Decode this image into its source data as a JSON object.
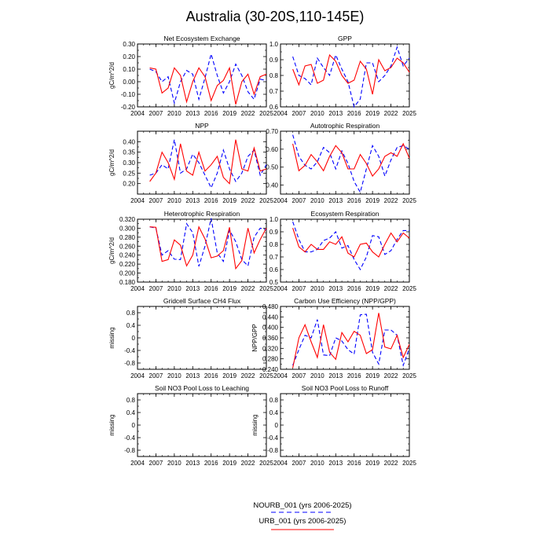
{
  "title": "Australia (30-20S,110-145E)",
  "colors": {
    "nourb": "#0000ff",
    "urb": "#ff0000"
  },
  "legend": [
    {
      "label": "NOURB_001 (yrs 2006-2025)",
      "color": "#0000ff",
      "style": "dashed"
    },
    {
      "label": "URB_001 (yrs 2006-2025)",
      "color": "#ff0000",
      "style": "solid"
    }
  ],
  "chart_data": [
    {
      "type": "line",
      "title": "Net Ecosystem Exchange",
      "ylabel": "gC/m^2/d",
      "xlim": [
        2004,
        2025
      ],
      "ylim": [
        -0.2,
        0.3
      ],
      "xticks": [
        2004,
        2007,
        2010,
        2013,
        2016,
        2019,
        2022,
        2025
      ],
      "yticks": [
        -0.2,
        -0.1,
        0.0,
        0.1,
        0.2,
        0.3
      ],
      "yticklabels": [
        "-0.20",
        "-0.10",
        "0.00",
        "0.10",
        "0.20",
        "0.30"
      ],
      "x": [
        2006,
        2007,
        2008,
        2009,
        2010,
        2011,
        2012,
        2013,
        2014,
        2015,
        2016,
        2017,
        2018,
        2019,
        2020,
        2021,
        2022,
        2023,
        2024,
        2025
      ],
      "series": [
        {
          "name": "NOURB_001",
          "values": [
            0.1,
            0.08,
            0.0,
            0.04,
            -0.17,
            0.0,
            0.09,
            0.06,
            -0.14,
            0.03,
            0.22,
            0.05,
            -0.09,
            0.0,
            0.14,
            0.05,
            -0.08,
            -0.14,
            0.02,
            0.01
          ]
        },
        {
          "name": "URB_001",
          "values": [
            0.11,
            0.1,
            -0.09,
            -0.05,
            0.11,
            0.05,
            -0.16,
            0.0,
            0.11,
            0.04,
            -0.15,
            -0.03,
            0.01,
            0.11,
            -0.18,
            0.0,
            0.06,
            -0.1,
            0.04,
            0.06
          ]
        }
      ]
    },
    {
      "type": "line",
      "title": "GPP",
      "ylabel": "",
      "xlim": [
        2004,
        2025
      ],
      "ylim": [
        0.6,
        1.0
      ],
      "xticks": [
        2004,
        2007,
        2010,
        2013,
        2016,
        2019,
        2022,
        2025
      ],
      "yticks": [
        0.6,
        0.7,
        0.8,
        0.9,
        1.0
      ],
      "yticklabels": [
        "0.6",
        "0.7",
        "0.8",
        "0.9",
        "1.0"
      ],
      "x": [
        2006,
        2007,
        2008,
        2009,
        2010,
        2011,
        2012,
        2013,
        2014,
        2015,
        2016,
        2017,
        2018,
        2019,
        2020,
        2021,
        2022,
        2023,
        2024,
        2025
      ],
      "series": [
        {
          "name": "NOURB_001",
          "values": [
            0.92,
            0.8,
            0.78,
            0.74,
            0.91,
            0.85,
            0.8,
            0.93,
            0.84,
            0.76,
            0.6,
            0.65,
            0.88,
            0.88,
            0.76,
            0.8,
            0.86,
            0.98,
            0.86,
            0.91
          ]
        },
        {
          "name": "URB_001",
          "values": [
            0.84,
            0.74,
            0.86,
            0.87,
            0.75,
            0.77,
            0.93,
            0.89,
            0.8,
            0.75,
            0.77,
            0.89,
            0.84,
            0.68,
            0.9,
            0.83,
            0.85,
            0.91,
            0.88,
            0.82
          ]
        }
      ]
    },
    {
      "type": "line",
      "title": "NPP",
      "ylabel": "gC/m^2/d",
      "xlim": [
        2004,
        2025
      ],
      "ylim": [
        0.15,
        0.45
      ],
      "xticks": [
        2004,
        2007,
        2010,
        2013,
        2016,
        2019,
        2022,
        2025
      ],
      "yticks": [
        0.2,
        0.25,
        0.3,
        0.35,
        0.4
      ],
      "yticklabels": [
        "0.20",
        "0.25",
        "0.30",
        "0.35",
        "0.40"
      ],
      "x": [
        2006,
        2007,
        2008,
        2009,
        2010,
        2011,
        2012,
        2013,
        2014,
        2015,
        2016,
        2017,
        2018,
        2019,
        2020,
        2021,
        2022,
        2023,
        2024,
        2025
      ],
      "series": [
        {
          "name": "NOURB_001",
          "values": [
            0.24,
            0.25,
            0.29,
            0.27,
            0.41,
            0.25,
            0.27,
            0.34,
            0.3,
            0.24,
            0.18,
            0.25,
            0.36,
            0.27,
            0.21,
            0.25,
            0.33,
            0.36,
            0.24,
            0.29
          ]
        },
        {
          "name": "URB_001",
          "values": [
            0.21,
            0.25,
            0.35,
            0.3,
            0.22,
            0.39,
            0.26,
            0.24,
            0.35,
            0.26,
            0.29,
            0.33,
            0.23,
            0.2,
            0.41,
            0.27,
            0.26,
            0.37,
            0.26,
            0.27
          ]
        }
      ]
    },
    {
      "type": "line",
      "title": "Autotrophic Respiration",
      "ylabel": "",
      "xlim": [
        2004,
        2025
      ],
      "ylim": [
        0.35,
        0.7
      ],
      "xticks": [
        2004,
        2007,
        2010,
        2013,
        2016,
        2019,
        2022,
        2025
      ],
      "yticks": [
        0.4,
        0.5,
        0.6,
        0.7
      ],
      "yticklabels": [
        "0.40",
        "0.50",
        "0.60",
        "0.70"
      ],
      "x": [
        2006,
        2007,
        2008,
        2009,
        2010,
        2011,
        2012,
        2013,
        2014,
        2015,
        2016,
        2017,
        2018,
        2019,
        2020,
        2021,
        2022,
        2023,
        2024,
        2025
      ],
      "series": [
        {
          "name": "NOURB_001",
          "values": [
            0.68,
            0.56,
            0.51,
            0.49,
            0.53,
            0.61,
            0.58,
            0.49,
            0.59,
            0.52,
            0.42,
            0.36,
            0.49,
            0.62,
            0.56,
            0.45,
            0.54,
            0.61,
            0.62,
            0.6
          ]
        },
        {
          "name": "URB_001",
          "values": [
            0.63,
            0.48,
            0.51,
            0.57,
            0.53,
            0.48,
            0.56,
            0.62,
            0.58,
            0.49,
            0.49,
            0.57,
            0.52,
            0.45,
            0.49,
            0.56,
            0.58,
            0.56,
            0.63,
            0.55
          ]
        }
      ]
    },
    {
      "type": "line",
      "title": "Heterotrophic Respiration",
      "ylabel": "gC/m^2/d",
      "xlim": [
        2004,
        2025
      ],
      "ylim": [
        0.18,
        0.32
      ],
      "xticks": [
        2004,
        2007,
        2010,
        2013,
        2016,
        2019,
        2022,
        2025
      ],
      "yticks": [
        0.18,
        0.2,
        0.22,
        0.24,
        0.26,
        0.28,
        0.3,
        0.32
      ],
      "yticklabels": [
        "0.180",
        "0.200",
        "0.220",
        "0.240",
        "0.260",
        "0.280",
        "0.300",
        "0.320"
      ],
      "x": [
        2006,
        2007,
        2008,
        2009,
        2010,
        2011,
        2012,
        2013,
        2014,
        2015,
        2016,
        2017,
        2018,
        2019,
        2020,
        2021,
        2022,
        2023,
        2024,
        2025
      ],
      "series": [
        {
          "name": "NOURB_001",
          "values": [
            0.303,
            0.3,
            0.24,
            0.25,
            0.231,
            0.23,
            0.31,
            0.29,
            0.215,
            0.26,
            0.322,
            0.245,
            0.226,
            0.296,
            0.27,
            0.23,
            0.216,
            0.28,
            0.3,
            0.296
          ]
        },
        {
          "name": "URB_001",
          "values": [
            0.303,
            0.302,
            0.226,
            0.23,
            0.274,
            0.262,
            0.216,
            0.24,
            0.303,
            0.276,
            0.234,
            0.238,
            0.25,
            0.302,
            0.21,
            0.228,
            0.3,
            0.245,
            0.275,
            0.3
          ]
        }
      ]
    },
    {
      "type": "line",
      "title": "Ecosystem Respiration",
      "ylabel": "",
      "xlim": [
        2004,
        2025
      ],
      "ylim": [
        0.5,
        1.0
      ],
      "xticks": [
        2004,
        2007,
        2010,
        2013,
        2016,
        2019,
        2022,
        2025
      ],
      "yticks": [
        0.5,
        0.6,
        0.7,
        0.8,
        0.9,
        1.0
      ],
      "yticklabels": [
        "0.5",
        "0.6",
        "0.7",
        "0.8",
        "0.9",
        "1.0"
      ],
      "x": [
        2006,
        2007,
        2008,
        2009,
        2010,
        2011,
        2012,
        2013,
        2014,
        2015,
        2016,
        2017,
        2018,
        2019,
        2020,
        2021,
        2022,
        2023,
        2024,
        2025
      ],
      "series": [
        {
          "name": "NOURB_001",
          "values": [
            0.98,
            0.84,
            0.74,
            0.74,
            0.76,
            0.83,
            0.85,
            0.9,
            0.77,
            0.79,
            0.68,
            0.6,
            0.7,
            0.87,
            0.86,
            0.72,
            0.75,
            0.84,
            0.91,
            0.91
          ]
        },
        {
          "name": "URB_001",
          "values": [
            0.93,
            0.78,
            0.74,
            0.8,
            0.76,
            0.76,
            0.82,
            0.8,
            0.86,
            0.73,
            0.7,
            0.8,
            0.81,
            0.74,
            0.7,
            0.8,
            0.89,
            0.82,
            0.89,
            0.85
          ]
        }
      ]
    },
    {
      "type": "line",
      "title": "Gridcell Surface CH4 Flux",
      "ylabel": "missing",
      "xlim": [
        2004,
        2025
      ],
      "ylim": [
        -1.0,
        1.0
      ],
      "xticks": [
        2004,
        2007,
        2010,
        2013,
        2016,
        2019,
        2022,
        2025
      ],
      "yticks": [
        -0.8,
        -0.4,
        0.0,
        0.4,
        0.8
      ],
      "yticklabels": [
        "-0.8",
        "-0.4",
        "0",
        "0.4",
        "0.8"
      ],
      "x": [],
      "series": []
    },
    {
      "type": "line",
      "title": "Carbon Use Efficiency (NPP/GPP)",
      "ylabel": "NPP/GPP",
      "xlim": [
        2004,
        2025
      ],
      "ylim": [
        0.24,
        0.48
      ],
      "xticks": [
        2004,
        2007,
        2010,
        2013,
        2016,
        2019,
        2022,
        2025
      ],
      "yticks": [
        0.24,
        0.28,
        0.32,
        0.36,
        0.4,
        0.44,
        0.48
      ],
      "yticklabels": [
        "0.240",
        "0.280",
        "0.320",
        "0.360",
        "0.400",
        "0.440",
        "0.480"
      ],
      "x": [
        2006,
        2007,
        2008,
        2009,
        2010,
        2011,
        2012,
        2013,
        2014,
        2015,
        2016,
        2017,
        2018,
        2019,
        2020,
        2021,
        2022,
        2023,
        2024,
        2025
      ],
      "series": [
        {
          "name": "NOURB_001",
          "values": [
            0.255,
            0.315,
            0.37,
            0.36,
            0.43,
            0.295,
            0.292,
            0.36,
            0.348,
            0.315,
            0.298,
            0.448,
            0.45,
            0.305,
            0.26,
            0.39,
            0.39,
            0.37,
            0.255,
            0.32
          ]
        },
        {
          "name": "URB_001",
          "values": [
            0.245,
            0.36,
            0.41,
            0.345,
            0.285,
            0.41,
            0.305,
            0.278,
            0.38,
            0.345,
            0.385,
            0.37,
            0.3,
            0.315,
            0.455,
            0.325,
            0.318,
            0.37,
            0.285,
            0.335
          ]
        }
      ]
    },
    {
      "type": "line",
      "title": "Soil NO3 Pool Loss to Leaching",
      "ylabel": "missing",
      "xlim": [
        2004,
        2025
      ],
      "ylim": [
        -1.0,
        1.0
      ],
      "xticks": [
        2004,
        2007,
        2010,
        2013,
        2016,
        2019,
        2022,
        2025
      ],
      "yticks": [
        -0.8,
        -0.4,
        0.0,
        0.4,
        0.8
      ],
      "yticklabels": [
        "-0.8",
        "-0.4",
        "0",
        "0.4",
        "0.8"
      ],
      "x": [],
      "series": []
    },
    {
      "type": "line",
      "title": "Soil NO3 Pool Loss to Runoff",
      "ylabel": "missing",
      "xlim": [
        2004,
        2025
      ],
      "ylim": [
        -1.0,
        1.0
      ],
      "xticks": [
        2004,
        2007,
        2010,
        2013,
        2016,
        2019,
        2022,
        2025
      ],
      "yticks": [
        -0.8,
        -0.4,
        0.0,
        0.4,
        0.8
      ],
      "yticklabels": [
        "-0.8",
        "-0.4",
        "0",
        "0.4",
        "0.8"
      ],
      "x": [],
      "series": []
    }
  ]
}
